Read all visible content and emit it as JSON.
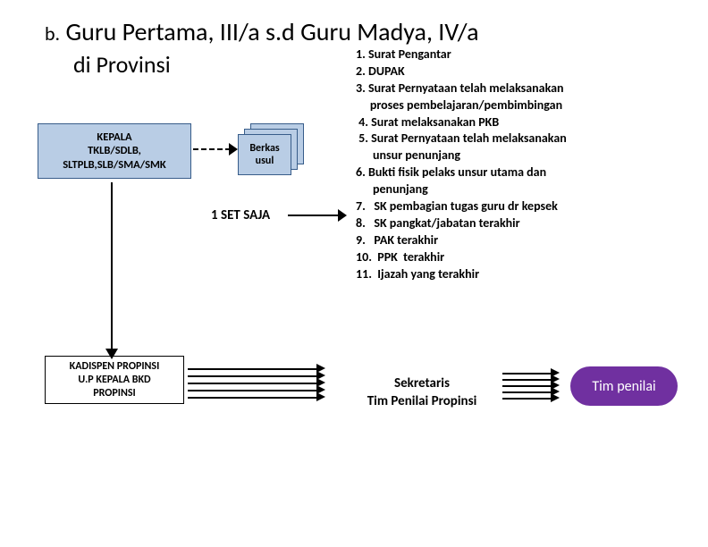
{
  "title": {
    "prefix": "b.",
    "main": "Guru Pertama, III/a s.d Guru Madya, IV/a",
    "sub": "di Provinsi"
  },
  "boxes": {
    "kepala": {
      "line1": "KEPALA",
      "line2": "TKLB/SDLB,",
      "line3": "SLTPLB,SLB/SMA/SMK",
      "bg": "#b9cde5",
      "border": "#385d8a"
    },
    "kadispen": {
      "line1": "KADISPEN PROPINSI",
      "line2": "U.P KEPALA BKD",
      "line3": "PROPINSI",
      "bg": "#ffffff",
      "border": "#000000"
    },
    "berkas": {
      "line1": "Berkas",
      "line2": "usul",
      "bg": "#b9cde5",
      "border": "#385d8a"
    },
    "tim_penilai": {
      "label": "Tim penilai",
      "bg": "#7030a0"
    }
  },
  "one_set_label": "1 SET SAJA",
  "sekretaris": {
    "line1": "Sekretaris",
    "line2": "Tim Penilai Propinsi"
  },
  "requirements": [
    "1. Surat Pengantar",
    "2. DUPAK",
    "3. Surat Pernyataan telah melaksanakan",
    "     proses pembelajaran/pembimbingan",
    " 4. Surat melaksanakan PKB",
    " 5. Surat Pernyataan telah melaksanakan",
    "      unsur penunjang",
    "6. Bukti fisik pelaks unsur utama dan",
    "      penunjang",
    "7.   SK pembagian tugas guru dr kepsek",
    "8.   SK pangkat/jabatan terakhir",
    "9.   PAK terakhir",
    "10.  PPK  terakhir",
    "11.  Ijazah yang terakhir"
  ],
  "colors": {
    "text": "#000000",
    "arrow": "#000000"
  }
}
